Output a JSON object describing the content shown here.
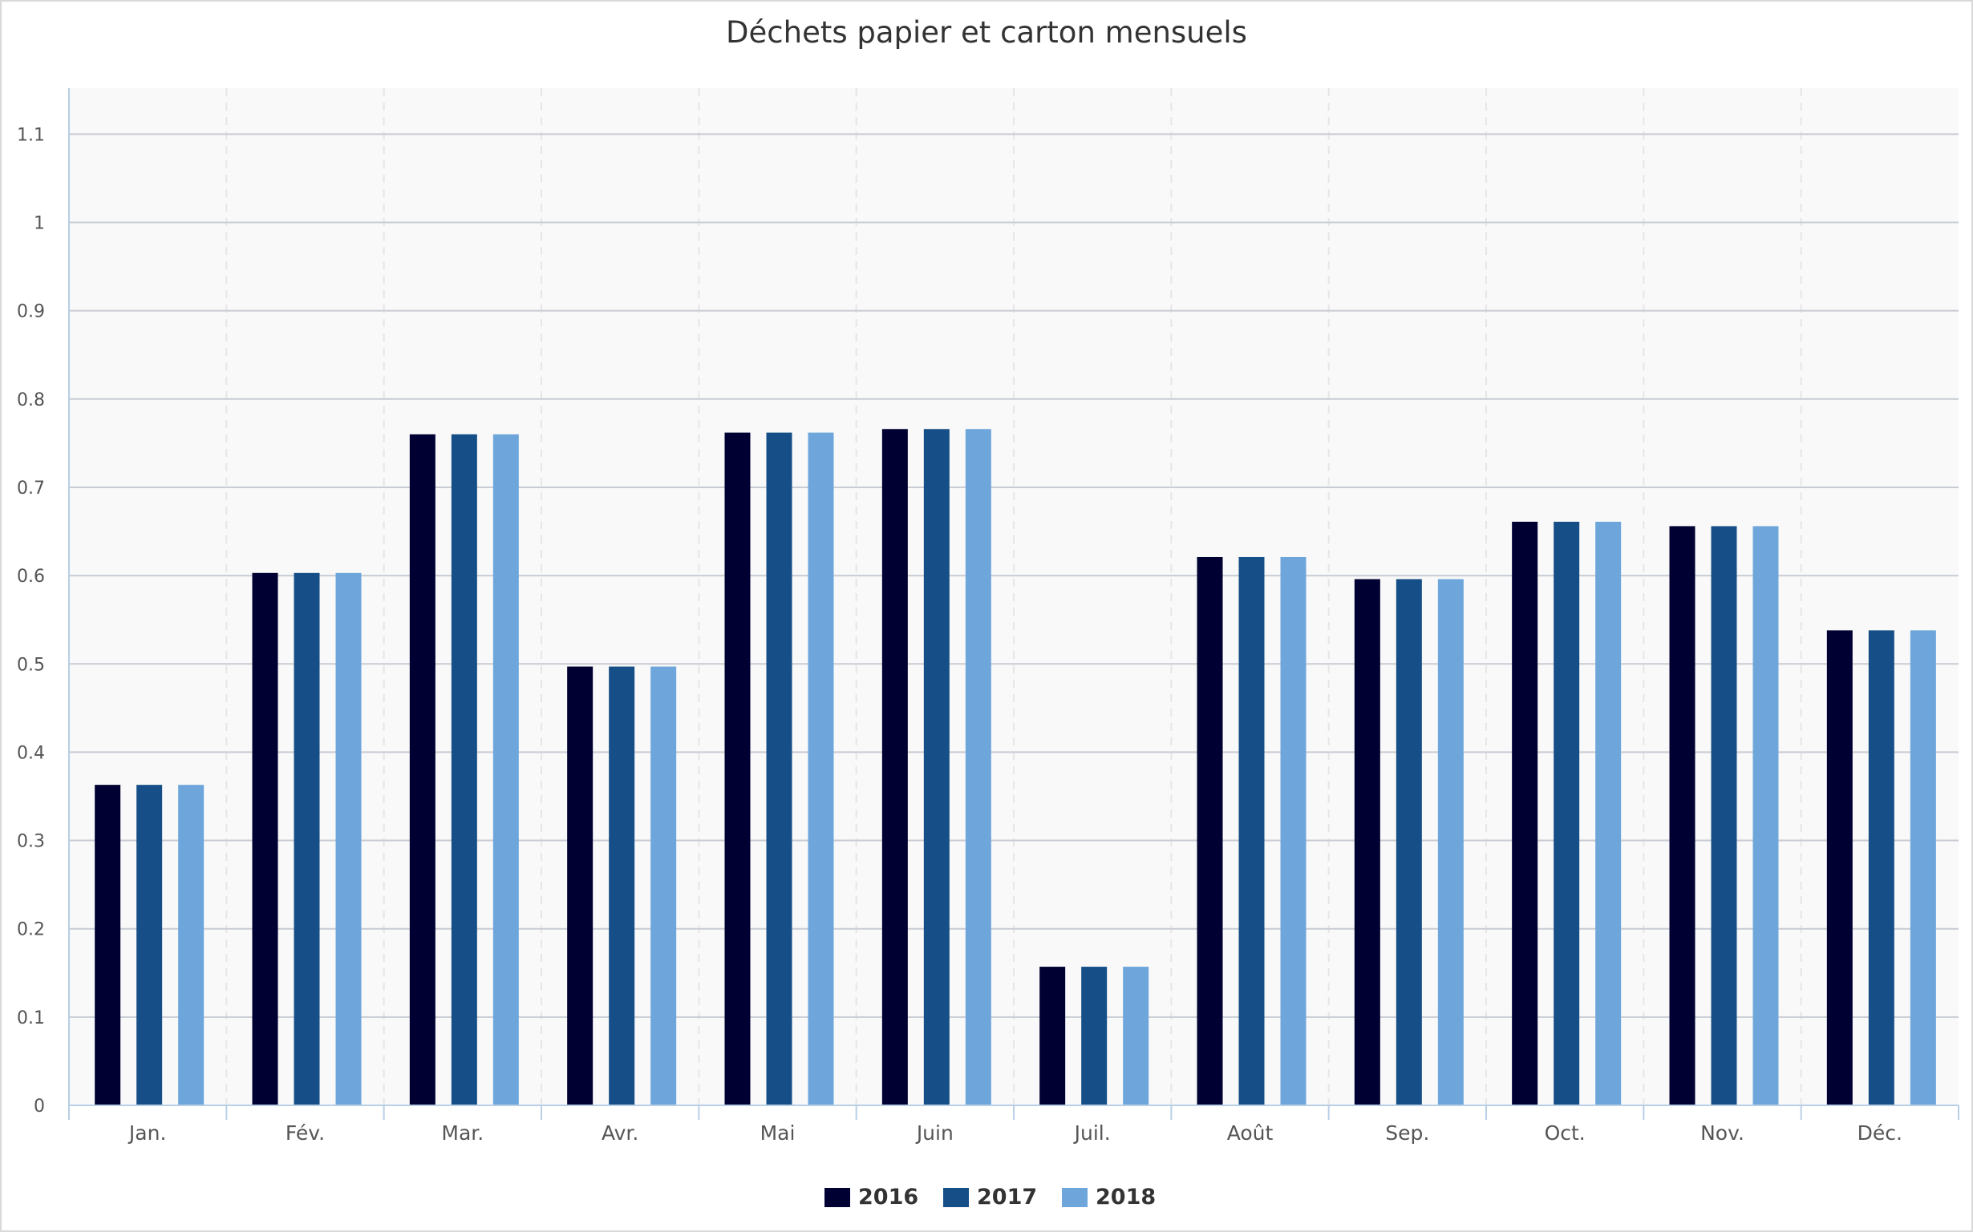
{
  "chart_data": {
    "type": "bar",
    "title": "Déchets papier et carton mensuels",
    "xlabel": "",
    "ylabel": "",
    "categories": [
      "Jan.",
      "Fév.",
      "Mar.",
      "Avr.",
      "Mai",
      "Juin",
      "Juil.",
      "Août",
      "Sep.",
      "Oct.",
      "Nov.",
      "Déc."
    ],
    "series": [
      {
        "name": "2016",
        "color": "#000033",
        "values": [
          0.363,
          0.603,
          0.76,
          0.497,
          0.762,
          0.766,
          0.157,
          0.621,
          0.596,
          0.661,
          0.656,
          0.538
        ]
      },
      {
        "name": "2017",
        "color": "#164f87",
        "values": [
          0.363,
          0.603,
          0.76,
          0.497,
          0.762,
          0.766,
          0.157,
          0.621,
          0.596,
          0.661,
          0.656,
          0.538
        ]
      },
      {
        "name": "2018",
        "color": "#6ea6db",
        "values": [
          0.363,
          0.603,
          0.76,
          0.497,
          0.762,
          0.766,
          0.157,
          0.621,
          0.596,
          0.661,
          0.656,
          0.538
        ]
      }
    ],
    "ylim": [
      0,
      1.15
    ],
    "yticks": [
      "0",
      "0.1",
      "0.2",
      "0.3",
      "0.4",
      "0.5",
      "0.6",
      "0.7",
      "0.8",
      "0.9",
      "1",
      "1.1"
    ],
    "ytick_values": [
      0,
      0.1,
      0.2,
      0.3,
      0.4,
      0.5,
      0.6,
      0.7,
      0.8,
      0.9,
      1,
      1.1
    ],
    "grid": true,
    "legend_position": "bottom-center",
    "colors": {
      "plot_background": "#f9f9f9",
      "grid_line": "#c8ccd3",
      "vertical_grid_line": "#e6e6e6",
      "axis_line": "#b8cfe6"
    }
  }
}
